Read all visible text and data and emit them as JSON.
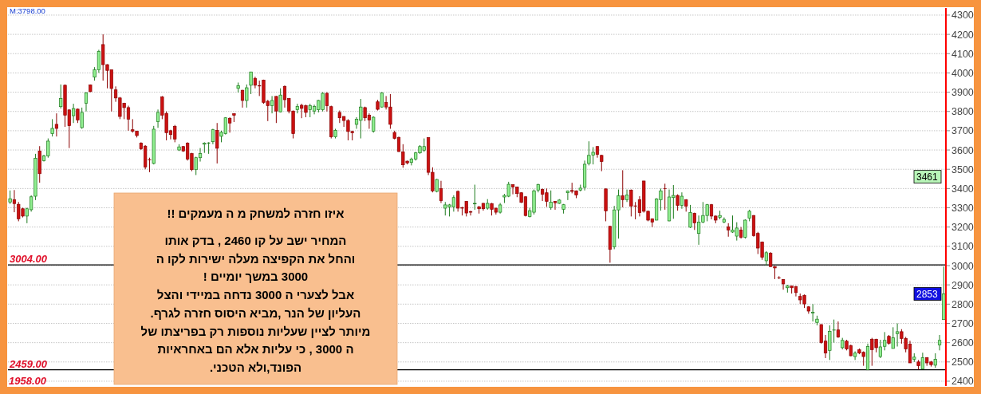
{
  "chart_data": {
    "type": "candlestick",
    "categories": [
      null,
      null,
      null,
      null,
      null,
      null,
      null,
      null,
      null,
      null,
      null,
      null,
      null,
      null,
      null,
      null,
      null,
      null,
      null,
      null,
      null,
      null,
      null,
      null,
      null,
      null,
      null,
      null,
      null,
      null,
      null,
      null,
      null,
      null,
      null,
      null,
      null,
      null,
      null,
      null,
      null,
      null,
      null,
      null,
      null,
      null,
      null,
      null,
      null,
      null,
      null,
      null,
      null,
      null,
      null,
      null,
      null,
      null,
      null,
      null,
      null,
      null,
      null,
      null,
      null,
      null,
      null,
      null,
      null,
      null,
      null,
      null,
      null,
      null,
      null,
      null,
      null,
      null,
      null,
      null,
      null,
      null,
      null,
      null,
      null,
      null,
      null,
      null,
      null,
      null,
      null,
      null,
      null,
      null,
      null,
      null,
      null,
      null,
      null,
      null,
      null,
      null,
      null,
      null,
      null,
      null,
      null,
      null,
      null,
      null,
      null,
      null,
      null,
      null,
      null,
      null,
      null,
      null,
      null,
      null,
      null,
      null,
      null,
      null,
      null,
      null,
      null,
      null,
      null,
      null,
      null,
      null,
      null,
      null,
      null,
      null,
      null,
      null,
      null,
      null,
      null,
      null,
      null,
      null,
      null,
      null,
      null,
      null,
      null,
      null,
      null,
      null,
      null,
      null,
      null,
      null,
      null,
      null,
      null,
      null,
      null,
      null,
      null,
      null,
      null,
      null,
      null,
      null,
      null,
      null,
      null,
      null,
      null,
      null,
      null,
      null,
      null,
      null,
      null,
      null,
      null,
      null,
      null,
      null,
      null,
      null,
      null,
      null,
      null,
      null,
      null,
      null,
      null,
      null,
      null,
      null,
      null,
      null,
      null,
      null,
      null,
      null,
      null,
      null,
      null,
      null,
      null,
      null,
      null,
      null,
      null,
      null,
      null,
      null,
      null,
      null,
      null,
      null,
      null,
      null,
      null,
      null
    ],
    "ohlc": [
      [
        3330,
        3390,
        3320,
        3347
      ],
      [
        3342,
        3392,
        3277,
        3322
      ],
      [
        3318,
        3330,
        3230,
        3243
      ],
      [
        3295,
        3300,
        3250,
        3257
      ],
      [
        3257,
        3300,
        3220,
        3295
      ],
      [
        3290,
        3365,
        3280,
        3357
      ],
      [
        3360,
        3580,
        3340,
        3557
      ],
      [
        3595,
        3620,
        3430,
        3477
      ],
      [
        3545,
        3575,
        3540,
        3570
      ],
      [
        3570,
        3660,
        3560,
        3646
      ],
      [
        3685,
        3760,
        3670,
        3712
      ],
      [
        3733,
        3790,
        3670,
        3712
      ],
      [
        3825,
        3940,
        3815,
        3867
      ],
      [
        3936,
        3940,
        3720,
        3781
      ],
      [
        3808,
        3810,
        3610,
        3726
      ],
      [
        3778,
        3840,
        3740,
        3815
      ],
      [
        3812,
        3815,
        3740,
        3756
      ],
      [
        3716,
        3820,
        3710,
        3795
      ],
      [
        3843,
        3900,
        3800,
        3896
      ],
      [
        3937,
        3940,
        3900,
        3903
      ],
      [
        3978,
        4030,
        3960,
        4016
      ],
      [
        4016,
        4120,
        4000,
        4112
      ],
      [
        4147,
        4200,
        3960,
        4043
      ],
      [
        4043,
        4045,
        3920,
        4013
      ],
      [
        4016,
        4016,
        3800,
        3919
      ],
      [
        3912,
        3930,
        3850,
        3870
      ],
      [
        3870,
        3875,
        3760,
        3774
      ],
      [
        3843,
        3845,
        3760,
        3820
      ],
      [
        3820,
        3830,
        3700,
        3760
      ],
      [
        3705,
        3760,
        3690,
        3698
      ],
      [
        3698,
        3700,
        3665,
        3675
      ],
      [
        3636,
        3640,
        3600,
        3606
      ],
      [
        3620,
        3625,
        3500,
        3512
      ],
      [
        3550,
        3560,
        3485,
        3548
      ],
      [
        3530,
        3725,
        3525,
        3708
      ],
      [
        3747,
        3810,
        3715,
        3795
      ],
      [
        3875,
        3880,
        3760,
        3781
      ],
      [
        3790,
        3800,
        3650,
        3690
      ],
      [
        3700,
        3705,
        3655,
        3680
      ],
      [
        3723,
        3730,
        3640,
        3657
      ],
      [
        3600,
        3630,
        3595,
        3616
      ],
      [
        3618,
        3620,
        3590,
        3595
      ],
      [
        3636,
        3640,
        3545,
        3553
      ],
      [
        3581,
        3585,
        3490,
        3498
      ],
      [
        3498,
        3565,
        3470,
        3560
      ],
      [
        3560,
        3610,
        3540,
        3581
      ],
      [
        3630,
        3640,
        3585,
        3636
      ],
      [
        3636,
        3640,
        3580,
        3636
      ],
      [
        3643,
        3710,
        3630,
        3705
      ],
      [
        3702,
        3740,
        3530,
        3609
      ],
      [
        3671,
        3700,
        3640,
        3692
      ],
      [
        3685,
        3770,
        3680,
        3767
      ],
      [
        3764,
        3770,
        3690,
        3740
      ],
      [
        3788,
        3790,
        3745,
        3780
      ],
      [
        3920,
        3950,
        3898,
        3933
      ],
      [
        3910,
        3912,
        3820,
        3857
      ],
      [
        3857,
        3940,
        3820,
        3923
      ],
      [
        3936,
        4006,
        3890,
        4005
      ],
      [
        3972,
        3980,
        3920,
        3936
      ],
      [
        3933,
        3960,
        3880,
        3932
      ],
      [
        3963,
        3965,
        3840,
        3847
      ],
      [
        3853,
        3860,
        3750,
        3830
      ],
      [
        3830,
        3880,
        3790,
        3857
      ],
      [
        3878,
        3880,
        3740,
        3802
      ],
      [
        3798,
        3920,
        3795,
        3885
      ],
      [
        3930,
        3935,
        3820,
        3861
      ],
      [
        3867,
        3870,
        3790,
        3802
      ],
      [
        3802,
        3805,
        3660,
        3685
      ],
      [
        3809,
        3840,
        3790,
        3826
      ],
      [
        3832,
        3840,
        3765,
        3816
      ],
      [
        3830,
        3835,
        3770,
        3795
      ],
      [
        3809,
        3840,
        3770,
        3830
      ],
      [
        3802,
        3835,
        3785,
        3826
      ],
      [
        3809,
        3860,
        3795,
        3857
      ],
      [
        3809,
        3900,
        3800,
        3894
      ],
      [
        3894,
        3900,
        3800,
        3830
      ],
      [
        3825,
        3830,
        3660,
        3668
      ],
      [
        3668,
        3710,
        3660,
        3702
      ],
      [
        3795,
        3805,
        3740,
        3767
      ],
      [
        3774,
        3775,
        3720,
        3753
      ],
      [
        3753,
        3760,
        3650,
        3696
      ],
      [
        3696,
        3700,
        3650,
        3690
      ],
      [
        3733,
        3770,
        3710,
        3760
      ],
      [
        3754,
        3865,
        3660,
        3823
      ],
      [
        3820,
        3825,
        3750,
        3767
      ],
      [
        3781,
        3790,
        3710,
        3756
      ],
      [
        3698,
        3775,
        3690,
        3770
      ],
      [
        3850,
        3860,
        3805,
        3811
      ],
      [
        3823,
        3900,
        3820,
        3896
      ],
      [
        3847,
        3880,
        3810,
        3823
      ],
      [
        3823,
        3890,
        3710,
        3733
      ],
      [
        3691,
        3700,
        3655,
        3660
      ],
      [
        3664,
        3670,
        3590,
        3592
      ],
      [
        3590,
        3630,
        3508,
        3523
      ],
      [
        3542,
        3545,
        3525,
        3533
      ],
      [
        3535,
        3560,
        3520,
        3553
      ],
      [
        3553,
        3590,
        3545,
        3585
      ],
      [
        3585,
        3625,
        3580,
        3618
      ],
      [
        3599,
        3660,
        3590,
        3618
      ],
      [
        3664,
        3665,
        3470,
        3484
      ],
      [
        3484,
        3510,
        3380,
        3388
      ],
      [
        3385,
        3450,
        3380,
        3447
      ],
      [
        3399,
        3440,
        3325,
        3337
      ],
      [
        3298,
        3330,
        3260,
        3315
      ],
      [
        3305,
        3320,
        3255,
        3315
      ],
      [
        3305,
        3365,
        3280,
        3353
      ],
      [
        3385,
        3390,
        3280,
        3298
      ],
      [
        3300,
        3305,
        3260,
        3298
      ],
      [
        3333,
        3335,
        3255,
        3273
      ],
      [
        3280,
        3285,
        3260,
        3277
      ],
      [
        3320,
        3420,
        3290,
        3323
      ],
      [
        3305,
        3310,
        3270,
        3295
      ],
      [
        3323,
        3325,
        3285,
        3295
      ],
      [
        3298,
        3345,
        3290,
        3323
      ],
      [
        3322,
        3325,
        3260,
        3292
      ],
      [
        3298,
        3300,
        3265,
        3277
      ],
      [
        3277,
        3325,
        3270,
        3315
      ],
      [
        3356,
        3372,
        3325,
        3364
      ],
      [
        3360,
        3435,
        3355,
        3422
      ],
      [
        3420,
        3420,
        3370,
        3408
      ],
      [
        3408,
        3410,
        3355,
        3374
      ],
      [
        3378,
        3380,
        3325,
        3328
      ],
      [
        3357,
        3360,
        3255,
        3260
      ],
      [
        3254,
        3300,
        3250,
        3285
      ],
      [
        3277,
        3395,
        3265,
        3388
      ],
      [
        3392,
        3425,
        3380,
        3420
      ],
      [
        3395,
        3400,
        3335,
        3370
      ],
      [
        3378,
        3400,
        3305,
        3333
      ],
      [
        3301,
        3390,
        3290,
        3329
      ],
      [
        3333,
        3335,
        3290,
        3326
      ],
      [
        3323,
        3345,
        3320,
        3340
      ],
      [
        3292,
        3320,
        3270,
        3316
      ],
      [
        3378,
        3390,
        3340,
        3387
      ],
      [
        3390,
        3430,
        3375,
        3385
      ],
      [
        3388,
        3390,
        3350,
        3367
      ],
      [
        3392,
        3420,
        3385,
        3402
      ],
      [
        3406,
        3545,
        3390,
        3526
      ],
      [
        3530,
        3645,
        3520,
        3572
      ],
      [
        3573,
        3615,
        3525,
        3588
      ],
      [
        3618,
        3620,
        3560,
        3577
      ],
      [
        3572,
        3575,
        3490,
        3540
      ],
      [
        3398,
        3400,
        3230,
        3284
      ],
      [
        3204,
        3205,
        3015,
        3084
      ],
      [
        3098,
        3310,
        3085,
        3289
      ],
      [
        3289,
        3395,
        3140,
        3363
      ],
      [
        3363,
        3495,
        3302,
        3342
      ],
      [
        3342,
        3395,
        3330,
        3367
      ],
      [
        3392,
        3395,
        3255,
        3309
      ],
      [
        3310,
        3330,
        3240,
        3308
      ],
      [
        3342,
        3360,
        3255,
        3275
      ],
      [
        3439,
        3440,
        3275,
        3282
      ],
      [
        3282,
        3285,
        3230,
        3236
      ],
      [
        3243,
        3245,
        3200,
        3226
      ],
      [
        3236,
        3350,
        3235,
        3346
      ],
      [
        3342,
        3400,
        3285,
        3388
      ],
      [
        3400,
        3425,
        3290,
        3399
      ],
      [
        3232,
        3395,
        3230,
        3356
      ],
      [
        3353,
        3418,
        3243,
        3364
      ],
      [
        3364,
        3370,
        3285,
        3312
      ],
      [
        3312,
        3380,
        3295,
        3360
      ],
      [
        3342,
        3345,
        3280,
        3308
      ],
      [
        3199,
        3315,
        3195,
        3275
      ],
      [
        3271,
        3275,
        3185,
        3222
      ],
      [
        3167,
        3260,
        3108,
        3226
      ],
      [
        3226,
        3330,
        3220,
        3260
      ],
      [
        3260,
        3320,
        3230,
        3316
      ],
      [
        3316,
        3320,
        3240,
        3257
      ],
      [
        3257,
        3260,
        3220,
        3236
      ],
      [
        3250,
        3285,
        3240,
        3260
      ],
      [
        3226,
        3250,
        3220,
        3240
      ],
      [
        3201,
        3220,
        3150,
        3185
      ],
      [
        3174,
        3260,
        3170,
        3185
      ],
      [
        3153,
        3225,
        3130,
        3195
      ],
      [
        3185,
        3200,
        3140,
        3147
      ],
      [
        3147,
        3240,
        3140,
        3236
      ],
      [
        3246,
        3290,
        3230,
        3282
      ],
      [
        3260,
        3262,
        3150,
        3156
      ],
      [
        3167,
        3175,
        3060,
        3091
      ],
      [
        3122,
        3125,
        3030,
        3043
      ],
      [
        3025,
        3075,
        3000,
        3067
      ],
      [
        3064,
        3070,
        2993,
        2995
      ],
      [
        2995,
        2998,
        2930,
        2988
      ],
      [
        2937,
        2945,
        2930,
        2936
      ],
      [
        2928,
        2930,
        2875,
        2905
      ],
      [
        2885,
        2900,
        2860,
        2894
      ],
      [
        2894,
        2895,
        2855,
        2885
      ],
      [
        2891,
        2895,
        2840,
        2860
      ],
      [
        2840,
        2855,
        2800,
        2822
      ],
      [
        2846,
        2850,
        2780,
        2801
      ],
      [
        2786,
        2790,
        2750,
        2764
      ],
      [
        2754,
        2800,
        2710,
        2758
      ],
      [
        2705,
        2740,
        2690,
        2722
      ],
      [
        2694,
        2695,
        2595,
        2601
      ],
      [
        2608,
        2640,
        2520,
        2546
      ],
      [
        2560,
        2690,
        2510,
        2659
      ],
      [
        2665,
        2720,
        2600,
        2666
      ],
      [
        2666,
        2710,
        2625,
        2629
      ],
      [
        2574,
        2625,
        2565,
        2612
      ],
      [
        2608,
        2615,
        2560,
        2567
      ],
      [
        2585,
        2590,
        2530,
        2532
      ],
      [
        2528,
        2555,
        2510,
        2546
      ],
      [
        2563,
        2570,
        2540,
        2546
      ],
      [
        2550,
        2555,
        2480,
        2528
      ],
      [
        2459,
        2595,
        2459,
        2580
      ],
      [
        2618,
        2625,
        2480,
        2564
      ],
      [
        2618,
        2620,
        2550,
        2574
      ],
      [
        2528,
        2615,
        2520,
        2578
      ],
      [
        2581,
        2655,
        2560,
        2612
      ],
      [
        2633,
        2640,
        2590,
        2597
      ],
      [
        2570,
        2680,
        2570,
        2625
      ],
      [
        2647,
        2700,
        2580,
        2657
      ],
      [
        2657,
        2670,
        2595,
        2622
      ],
      [
        2622,
        2630,
        2550,
        2567
      ],
      [
        2592,
        2610,
        2495,
        2495
      ],
      [
        2514,
        2545,
        2500,
        2525
      ],
      [
        2500,
        2510,
        2460,
        2480
      ],
      [
        2463,
        2548,
        2463,
        2522
      ],
      [
        2522,
        2525,
        2480,
        2495
      ],
      [
        2500,
        2505,
        2476,
        2486
      ],
      [
        2483,
        2545,
        2470,
        2514
      ],
      [
        2588,
        2640,
        2560,
        2612
      ],
      [
        2720,
        2995,
        2720,
        2853
      ]
    ],
    "ylim": [
      2375,
      4337
    ],
    "yticks": [
      2400,
      2500,
      2600,
      2700,
      2800,
      2900,
      3000,
      3100,
      3200,
      3300,
      3400,
      3500,
      3600,
      3700,
      3800,
      3900,
      4000,
      4100,
      4200,
      4300
    ],
    "grid": "y",
    "ref_lines": [
      {
        "axis": "y",
        "value": 3004,
        "label": "3004.00",
        "color": "#000000"
      },
      {
        "axis": "y",
        "value": 2459,
        "label": "2459.00",
        "color": "#000000"
      }
    ],
    "annotations": [
      "M:3798.00",
      "1958.00",
      "איזו חזרה למשחק מ ה מעמקים !!",
      "המחיר ישב על קו 2460 , בדק אותו",
      "והחל את הקפיצה מעלה ישירות לקו ה",
      "3000 במשך יומיים !",
      "אבל לצערי ה 3000 נדחה במיידי והצל",
      "העליון של הנר ,מביא היסוס חזרה לגרף.",
      "מיותר לציין שעליות נוספות רק בפריצתו של",
      "ה 3000 , כי עליות אלא הם באחראיות",
      "הפונד,ולא הטכני.",
      {
        "text": "3461",
        "y": 3461
      },
      {
        "text": "2853",
        "y": 2853
      }
    ]
  }
}
